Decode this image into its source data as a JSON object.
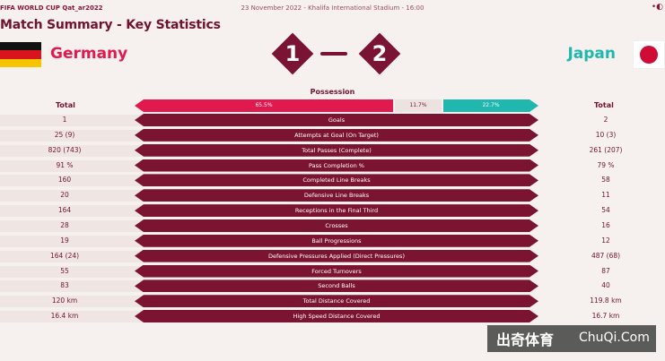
{
  "header": {
    "brand": "FIFA WORLD CUP Qat_ar2022",
    "match_info": "23 November 2022 - Khalifa International Stadium - 16:00",
    "title": "Match Summary - Key Statistics"
  },
  "teams": {
    "home": {
      "name": "Germany",
      "score": "1",
      "color": "#e0194e"
    },
    "away": {
      "name": "Japan",
      "score": "2",
      "color": "#20b8ae"
    }
  },
  "possession": {
    "label": "Possession",
    "home": "65.5%",
    "contest": "11.7%",
    "away": "22.7%",
    "home_value": 65.5,
    "contest_value": 11.7,
    "away_value": 22.7
  },
  "columns": {
    "home": "Total",
    "away": "Total"
  },
  "stats": [
    {
      "label": "Goals",
      "home": "1",
      "away": "2"
    },
    {
      "label": "Attempts at Goal (On Target)",
      "home": "25 (9)",
      "away": "10 (3)"
    },
    {
      "label": "Total Passes (Complete)",
      "home": "820 (743)",
      "away": "261 (207)"
    },
    {
      "label": "Pass Completion %",
      "home": "91 %",
      "away": "79 %"
    },
    {
      "label": "Completed Line Breaks",
      "home": "160",
      "away": "58"
    },
    {
      "label": "Defensive Line Breaks",
      "home": "20",
      "away": "11"
    },
    {
      "label": "Receptions in the Final Third",
      "home": "164",
      "away": "54"
    },
    {
      "label": "Crosses",
      "home": "28",
      "away": "16"
    },
    {
      "label": "Ball Progressions",
      "home": "19",
      "away": "12"
    },
    {
      "label": "Defensive Pressures Applied (Direct Pressures)",
      "home": "164 (24)",
      "away": "487 (68)"
    },
    {
      "label": "Forced Turnovers",
      "home": "55",
      "away": "87"
    },
    {
      "label": "Second Balls",
      "home": "83",
      "away": "40"
    },
    {
      "label": "Total Distance Covered",
      "home": "120 km",
      "away": "119.8 km"
    },
    {
      "label": "High Speed Distance Covered",
      "home": "16.4 km",
      "away": "16.7 km"
    }
  ],
  "watermark": {
    "chinese": "出奇体育",
    "latin": "ChuQi.Com"
  }
}
